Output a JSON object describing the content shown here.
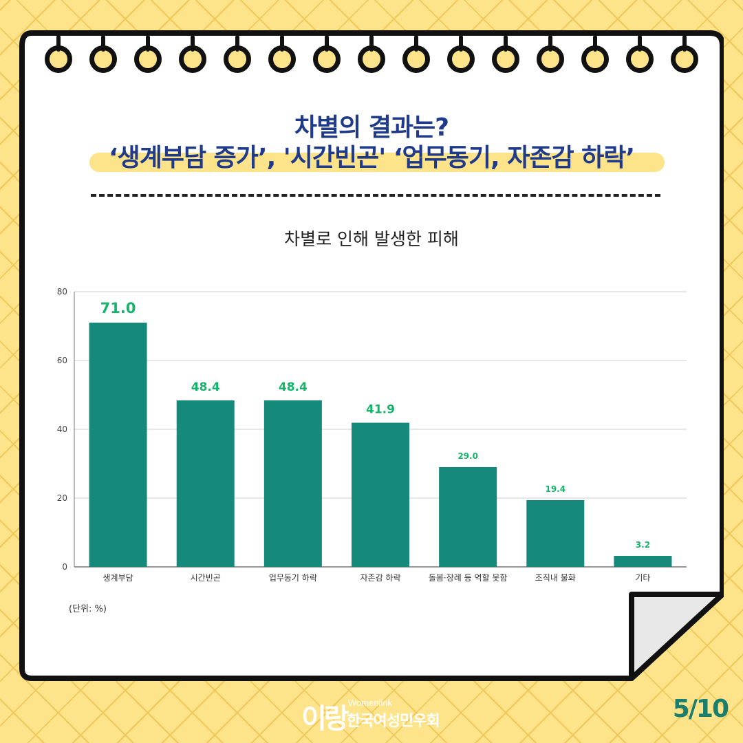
{
  "header": {
    "title_line1": "차별의 결과는?",
    "title_line2": "‘생계부담 증가’, '시간빈곤' ‘업무동기, 자존감 하락’"
  },
  "chart_data": {
    "type": "bar",
    "title": "차별로 인해 발생한 피해",
    "categories": [
      "생계부담",
      "시간빈곤",
      "업무동기 하락",
      "자존감 하락",
      "돌봄·장례 등 역할 못함",
      "조직내 불화",
      "기타"
    ],
    "values": [
      71.0,
      48.4,
      48.4,
      41.9,
      29.0,
      19.4,
      3.2
    ],
    "value_labels": [
      "71.0",
      "48.4",
      "48.4",
      "41.9",
      "29.0",
      "19.4",
      "3.2"
    ],
    "yticks": [
      "0",
      "20",
      "40",
      "60",
      "80"
    ],
    "ylim": [
      0,
      80
    ],
    "grid": true,
    "unit_note": "(단위: %)",
    "colors": {
      "bar": "#15897a",
      "label": "#17b36b",
      "grid": "#cfcfcf",
      "axis": "#777777"
    }
  },
  "footer": {
    "logo_mark": "이랑",
    "logo_en": "Womenlink",
    "logo_ko": "한국여성민우회",
    "page": "5/10"
  }
}
